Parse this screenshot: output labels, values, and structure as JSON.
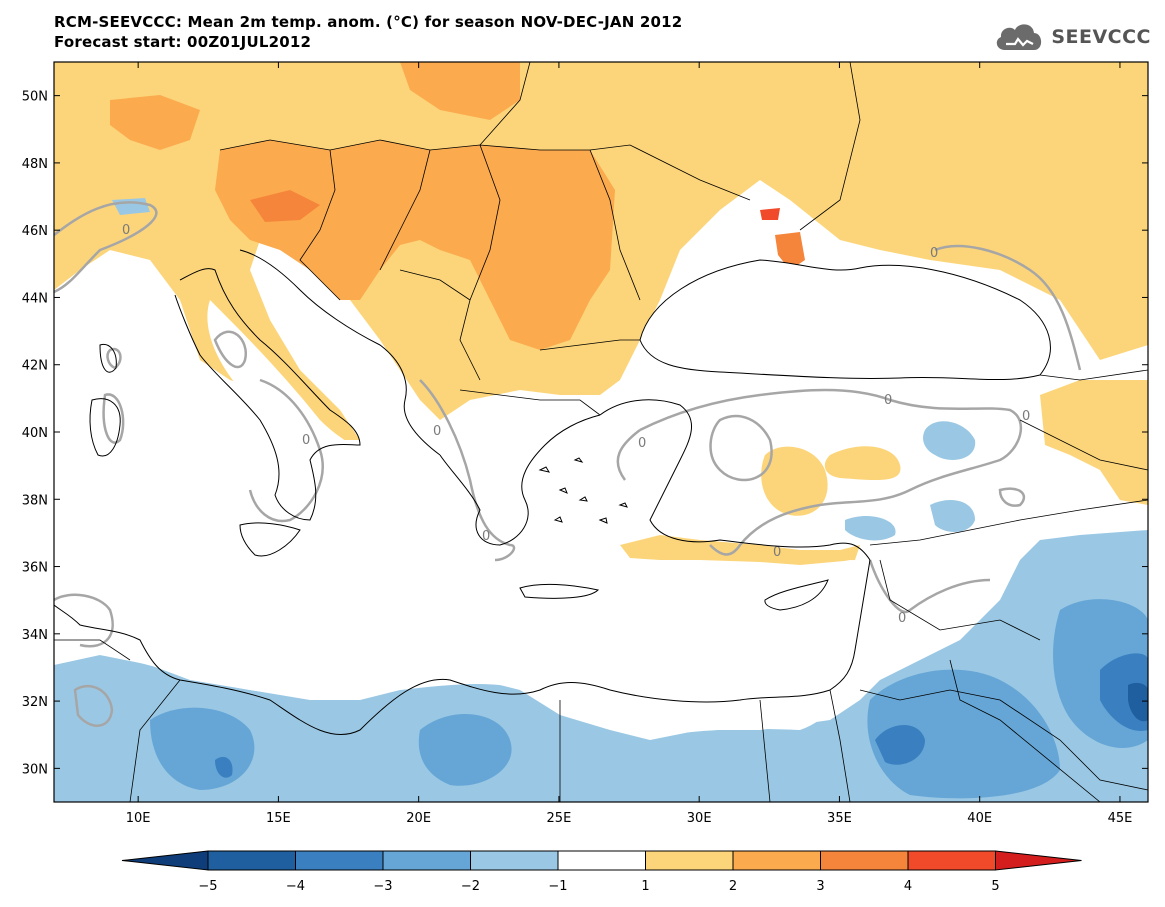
{
  "header": {
    "title_line1": "RCM-SEEVCCC: Mean 2m temp. anom. (°C) for season NOV-DEC-JAN 2012",
    "title_line2": "Forecast start: 00Z01JUL2012"
  },
  "logo": {
    "text": "SEEVCCC",
    "icon": "cloud-icon"
  },
  "map": {
    "lon_range": [
      7,
      46
    ],
    "lat_range": [
      29,
      51
    ],
    "lat_ticks": [
      {
        "value": 50,
        "label": "50N"
      },
      {
        "value": 48,
        "label": "48N"
      },
      {
        "value": 46,
        "label": "46N"
      },
      {
        "value": 44,
        "label": "44N"
      },
      {
        "value": 42,
        "label": "42N"
      },
      {
        "value": 40,
        "label": "40N"
      },
      {
        "value": 38,
        "label": "38N"
      },
      {
        "value": 36,
        "label": "36N"
      },
      {
        "value": 34,
        "label": "34N"
      },
      {
        "value": 32,
        "label": "32N"
      },
      {
        "value": 30,
        "label": "30N"
      }
    ],
    "lon_ticks": [
      {
        "value": 10,
        "label": "10E"
      },
      {
        "value": 15,
        "label": "15E"
      },
      {
        "value": 20,
        "label": "20E"
      },
      {
        "value": 25,
        "label": "25E"
      },
      {
        "value": 30,
        "label": "30E"
      },
      {
        "value": 35,
        "label": "35E"
      },
      {
        "value": 40,
        "label": "40E"
      },
      {
        "value": 45,
        "label": "45E"
      }
    ],
    "zero_contour_label": "0"
  },
  "colorbar": {
    "colors": [
      "#1f5fa0",
      "#3a80c0",
      "#66a6d6",
      "#9ac8e4",
      "#ffffff",
      "#fcd57a",
      "#fbaa4e",
      "#f5853b",
      "#f04a2a"
    ],
    "end_low_color": "#0f3d7a",
    "end_high_color": "#d41e1e",
    "labels": [
      "−5",
      "−4",
      "−3",
      "−2",
      "−1",
      "1",
      "2",
      "3",
      "4",
      "5"
    ]
  }
}
